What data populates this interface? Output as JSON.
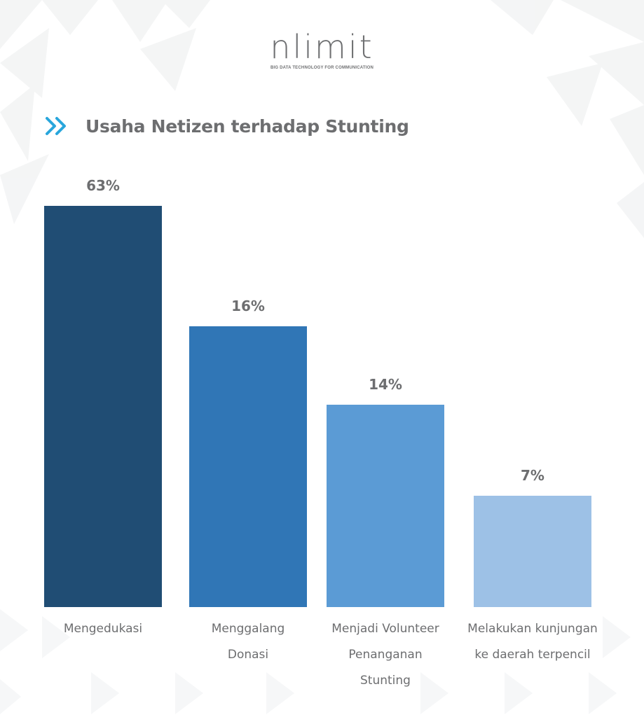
{
  "logo": {
    "wordmark": "nlimit",
    "tagline": "BIG DATA TECHNOLOGY FOR COMMUNICATION"
  },
  "colors": {
    "text": "#6d6e70",
    "accent": "#29a6dc"
  },
  "icons": {
    "title_marker": "double-chevron-right-icon"
  },
  "chart_data": {
    "type": "bar",
    "title": "Usaha Netizen terhadap Stunting",
    "categories": [
      [
        "Mengedukasi"
      ],
      [
        "Menggalang",
        "Donasi"
      ],
      [
        "Menjadi Volunteer",
        "Penanganan",
        "Stunting"
      ],
      [
        "Melakukan kunjungan",
        "ke daerah terpencil"
      ]
    ],
    "values": [
      63,
      16,
      14,
      7
    ],
    "value_labels": [
      "63%",
      "16%",
      "14%",
      "7%"
    ],
    "bar_colors": [
      "#204d74",
      "#3076b6",
      "#5b9bd5",
      "#9dc1e6"
    ],
    "unit": "%",
    "grid": false,
    "legend": "none"
  }
}
